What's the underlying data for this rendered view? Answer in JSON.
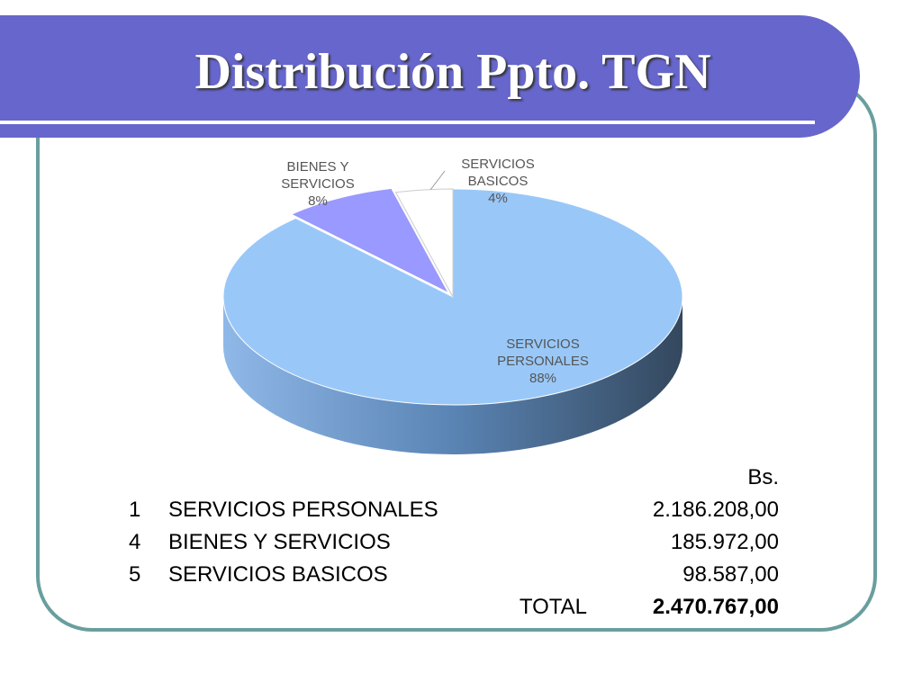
{
  "chart_data": {
    "type": "pie",
    "title": "Distribución Ppto. TGN",
    "categories": [
      "SERVICIOS PERSONALES",
      "BIENES Y SERVICIOS",
      "SERVICIOS BASICOS"
    ],
    "values": [
      88,
      8,
      4
    ],
    "value_labels": [
      "88%",
      "8%",
      "4%"
    ],
    "colors": [
      "#99c8f8",
      "#9999ff",
      "#ffffff"
    ]
  },
  "table": {
    "unit": "Bs.",
    "rows": [
      [
        "1",
        "SERVICIOS PERSONALES",
        "2.186.208,00"
      ],
      [
        "4",
        "BIENES Y SERVICIOS",
        "185.972,00"
      ],
      [
        "5",
        "SERVICIOS BASICOS",
        "98.587,00"
      ]
    ],
    "total_label": "TOTAL",
    "total": "2.470.767,00"
  }
}
